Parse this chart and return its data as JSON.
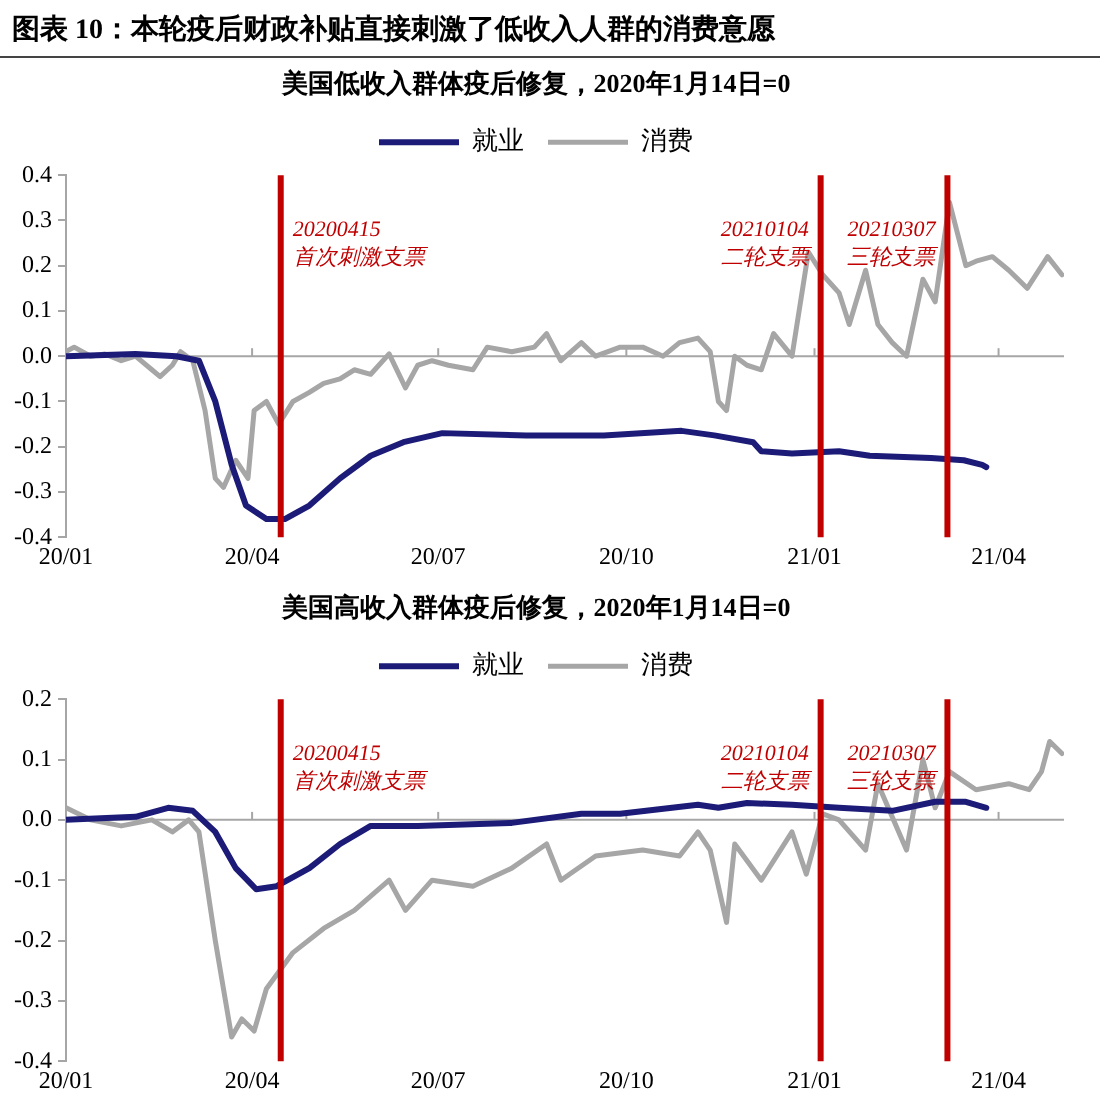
{
  "chart_data": [
    {
      "type": "line",
      "title": "美国低收入群体疫后修复，2020年1月14日=0",
      "annotations": [
        "图表 10：本轮疫后财政补贴直接刺激了低收入人群的消费意愿"
      ],
      "legend": "top",
      "grid": false,
      "marker": "none",
      "line_style": "solid",
      "xlim": [
        "2020-01-01",
        "2021-05-03"
      ],
      "xticks": [
        {
          "value": "2020-01-01",
          "label": "20/01"
        },
        {
          "value": "2020-04-01",
          "label": "20/04"
        },
        {
          "value": "2020-07-01",
          "label": "20/07"
        },
        {
          "value": "2020-10-01",
          "label": "20/10"
        },
        {
          "value": "2021-01-01",
          "label": "21/01"
        },
        {
          "value": "2021-04-01",
          "label": "21/04"
        }
      ],
      "ylim": [
        -0.4,
        0.4
      ],
      "yticks": [
        -0.4,
        -0.3,
        -0.2,
        -0.1,
        {
          "value": 0,
          "label": "0.0"
        },
        0.1,
        0.2,
        0.3,
        0.4
      ],
      "ref_lines": [
        {
          "axis": "y",
          "value": 0,
          "label": null,
          "color": "#a6a6a6"
        },
        {
          "axis": "x",
          "value": "2020-04-15",
          "label": "20200415\n首次刺激支票",
          "color": "#c00000"
        },
        {
          "axis": "x",
          "value": "2021-01-04",
          "label": "20210104\n二轮支票",
          "color": "#c00000"
        },
        {
          "axis": "x",
          "value": "2021-03-07",
          "label": "20210307\n三轮支票",
          "color": "#c00000"
        }
      ],
      "series": [
        {
          "name": "就业",
          "color": "#1c1c78",
          "x": [
            "2020-01-01",
            "2020-02-04",
            "2020-02-24",
            "2020-03-06",
            "2020-03-14",
            "2020-03-22",
            "2020-03-29",
            "2020-04-08",
            "2020-04-17",
            "2020-04-29",
            "2020-05-14",
            "2020-05-29",
            "2020-06-14",
            "2020-07-03",
            "2020-08-13",
            "2020-09-20",
            "2020-10-28",
            "2020-11-13",
            "2020-12-02",
            "2020-12-06",
            "2020-12-21",
            "2021-01-13",
            "2021-01-28",
            "2021-02-27",
            "2021-03-15",
            "2021-03-24",
            "2021-03-26"
          ],
          "values": [
            0,
            0.005,
            0,
            -0.01,
            -0.1,
            -0.24,
            -0.33,
            -0.36,
            -0.36,
            -0.33,
            -0.27,
            -0.22,
            -0.19,
            -0.17,
            -0.175,
            -0.175,
            -0.165,
            -0.175,
            -0.19,
            -0.21,
            -0.215,
            -0.21,
            -0.22,
            -0.225,
            -0.23,
            -0.24,
            -0.245
          ]
        },
        {
          "name": "消费",
          "color": "#a6a6a6",
          "x": [
            "2020-01-01",
            "2020-01-05",
            "2020-01-13",
            "2020-01-20",
            "2020-01-28",
            "2020-02-04",
            "2020-02-12",
            "2020-02-16",
            "2020-02-22",
            "2020-02-26",
            "2020-03-03",
            "2020-03-09",
            "2020-03-14",
            "2020-03-18",
            "2020-03-24",
            "2020-03-30",
            "2020-04-02",
            "2020-04-08",
            "2020-04-14",
            "2020-04-21",
            "2020-04-29",
            "2020-05-06",
            "2020-05-14",
            "2020-05-21",
            "2020-05-29",
            "2020-06-07",
            "2020-06-15",
            "2020-06-21",
            "2020-06-28",
            "2020-07-06",
            "2020-07-18",
            "2020-07-25",
            "2020-08-06",
            "2020-08-17",
            "2020-08-23",
            "2020-08-30",
            "2020-09-09",
            "2020-09-16",
            "2020-09-28",
            "2020-10-09",
            "2020-10-19",
            "2020-10-27",
            "2020-11-05",
            "2020-11-11",
            "2020-11-15",
            "2020-11-19",
            "2020-11-23",
            "2020-11-29",
            "2020-12-06",
            "2020-12-12",
            "2020-12-21",
            "2020-12-29",
            "2021-01-05",
            "2021-01-13",
            "2021-01-18",
            "2021-01-26",
            "2021-02-01",
            "2021-02-08",
            "2021-02-15",
            "2021-02-23",
            "2021-03-01",
            "2021-03-08",
            "2021-03-16",
            "2021-03-21",
            "2021-03-29",
            "2021-04-06",
            "2021-04-15",
            "2021-04-25",
            "2021-05-02"
          ],
          "values": [
            0.01,
            0.02,
            0,
            0.005,
            -0.01,
            0,
            -0.03,
            -0.045,
            -0.02,
            0.01,
            -0.01,
            -0.12,
            -0.27,
            -0.29,
            -0.23,
            -0.27,
            -0.12,
            -0.1,
            -0.15,
            -0.1,
            -0.08,
            -0.06,
            -0.05,
            -0.03,
            -0.04,
            0.005,
            -0.07,
            -0.02,
            -0.01,
            -0.02,
            -0.03,
            0.02,
            0.01,
            0.02,
            0.05,
            -0.01,
            0.03,
            0,
            0.02,
            0.02,
            0,
            0.03,
            0.04,
            0.01,
            -0.1,
            -0.12,
            0,
            -0.02,
            -0.03,
            0.05,
            0,
            0.23,
            0.18,
            0.14,
            0.07,
            0.19,
            0.07,
            0.03,
            0,
            0.17,
            0.12,
            0.34,
            0.2,
            0.21,
            0.22,
            0.19,
            0.15,
            0.22,
            0.18
          ]
        }
      ]
    },
    {
      "type": "line",
      "title": "美国高收入群体疫后修复，2020年1月14日=0",
      "legend": "top",
      "grid": false,
      "marker": "none",
      "line_style": "solid",
      "xlim": [
        "2020-01-01",
        "2021-05-03"
      ],
      "xticks": [
        {
          "value": "2020-01-01",
          "label": "20/01"
        },
        {
          "value": "2020-04-01",
          "label": "20/04"
        },
        {
          "value": "2020-07-01",
          "label": "20/07"
        },
        {
          "value": "2020-10-01",
          "label": "20/10"
        },
        {
          "value": "2021-01-01",
          "label": "21/01"
        },
        {
          "value": "2021-04-01",
          "label": "21/04"
        }
      ],
      "ylim": [
        -0.4,
        0.2
      ],
      "yticks": [
        -0.4,
        -0.3,
        -0.2,
        -0.1,
        {
          "value": 0,
          "label": "0.0"
        },
        0.1,
        0.2
      ],
      "ref_lines": [
        {
          "axis": "y",
          "value": 0,
          "label": null,
          "color": "#a6a6a6"
        },
        {
          "axis": "x",
          "value": "2020-04-15",
          "label": "20200415\n首次刺激支票",
          "color": "#c00000"
        },
        {
          "axis": "x",
          "value": "2021-01-04",
          "label": "20210104\n二轮支票",
          "color": "#c00000"
        },
        {
          "axis": "x",
          "value": "2021-03-07",
          "label": "20210307\n三轮支票",
          "color": "#c00000"
        }
      ],
      "series": [
        {
          "name": "就业",
          "color": "#1c1c78",
          "x": [
            "2020-01-01",
            "2020-02-04",
            "2020-02-20",
            "2020-03-03",
            "2020-03-14",
            "2020-03-24",
            "2020-04-03",
            "2020-04-13",
            "2020-04-29",
            "2020-05-14",
            "2020-05-29",
            "2020-06-21",
            "2020-08-06",
            "2020-09-09",
            "2020-09-28",
            "2020-11-05",
            "2020-11-15",
            "2020-11-29",
            "2020-12-21",
            "2021-01-13",
            "2021-02-08",
            "2021-03-01",
            "2021-03-16",
            "2021-03-26"
          ],
          "values": [
            0,
            0.005,
            0.02,
            0.015,
            -0.02,
            -0.08,
            -0.115,
            -0.11,
            -0.08,
            -0.04,
            -0.01,
            -0.01,
            -0.005,
            0.01,
            0.01,
            0.025,
            0.02,
            0.028,
            0.025,
            0.02,
            0.015,
            0.03,
            0.03,
            0.02
          ]
        },
        {
          "name": "消费",
          "color": "#a6a6a6",
          "x": [
            "2020-01-01",
            "2020-01-13",
            "2020-01-28",
            "2020-02-12",
            "2020-02-22",
            "2020-03-01",
            "2020-03-06",
            "2020-03-14",
            "2020-03-22",
            "2020-03-27",
            "2020-04-02",
            "2020-04-08",
            "2020-04-21",
            "2020-05-06",
            "2020-05-21",
            "2020-06-07",
            "2020-06-15",
            "2020-06-28",
            "2020-07-18",
            "2020-08-06",
            "2020-08-23",
            "2020-08-30",
            "2020-09-16",
            "2020-10-09",
            "2020-10-27",
            "2020-11-05",
            "2020-11-11",
            "2020-11-19",
            "2020-11-23",
            "2020-12-06",
            "2020-12-21",
            "2020-12-28",
            "2021-01-05",
            "2021-01-13",
            "2021-01-26",
            "2021-02-01",
            "2021-02-15",
            "2021-02-23",
            "2021-03-01",
            "2021-03-08",
            "2021-03-21",
            "2021-04-06",
            "2021-04-16",
            "2021-04-22",
            "2021-04-26",
            "2021-05-02"
          ],
          "values": [
            0.02,
            0,
            -0.01,
            0,
            -0.02,
            0,
            -0.02,
            -0.2,
            -0.36,
            -0.33,
            -0.35,
            -0.28,
            -0.22,
            -0.18,
            -0.15,
            -0.1,
            -0.15,
            -0.1,
            -0.11,
            -0.08,
            -0.04,
            -0.1,
            -0.06,
            -0.05,
            -0.06,
            -0.02,
            -0.05,
            -0.17,
            -0.04,
            -0.1,
            -0.02,
            -0.09,
            0.01,
            0,
            -0.05,
            0.06,
            -0.05,
            0.1,
            0.02,
            0.08,
            0.05,
            0.06,
            0.05,
            0.08,
            0.13,
            0.11
          ]
        }
      ]
    }
  ]
}
